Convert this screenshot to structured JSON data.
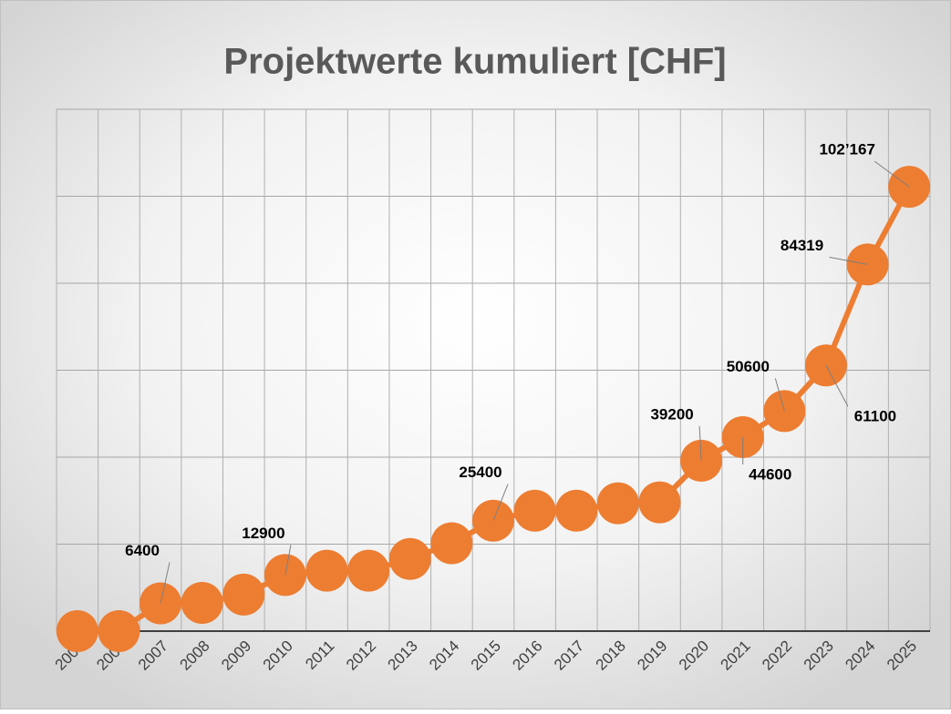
{
  "chart_data": {
    "type": "line",
    "title": "Projektwerte kumuliert [CHF]",
    "categories": [
      "2005",
      "2006",
      "2007",
      "2008",
      "2009",
      "2010",
      "2011",
      "2012",
      "2013",
      "2014",
      "2015",
      "2016",
      "2017",
      "2018",
      "2019",
      "2020",
      "2021",
      "2022",
      "2023",
      "2024",
      "2025"
    ],
    "series": [
      {
        "name": "Projektwerte kumuliert",
        "color": "#ed7d31",
        "values": [
          0,
          0,
          6400,
          6500,
          8400,
          12900,
          13900,
          13900,
          16600,
          20200,
          25400,
          27700,
          27700,
          29400,
          29600,
          39200,
          44600,
          50600,
          61100,
          84319,
          102167
        ],
        "value_labels": [
          null,
          null,
          "6400",
          null,
          null,
          "12900",
          null,
          null,
          null,
          null,
          "25400",
          null,
          null,
          null,
          null,
          "39200",
          "44600",
          "50600",
          "61100",
          "84319",
          "102’167"
        ]
      }
    ],
    "ylim": [
      0,
      120000
    ],
    "yticks": [
      0,
      20000,
      40000,
      60000,
      80000,
      100000,
      120000
    ],
    "grid": true
  }
}
